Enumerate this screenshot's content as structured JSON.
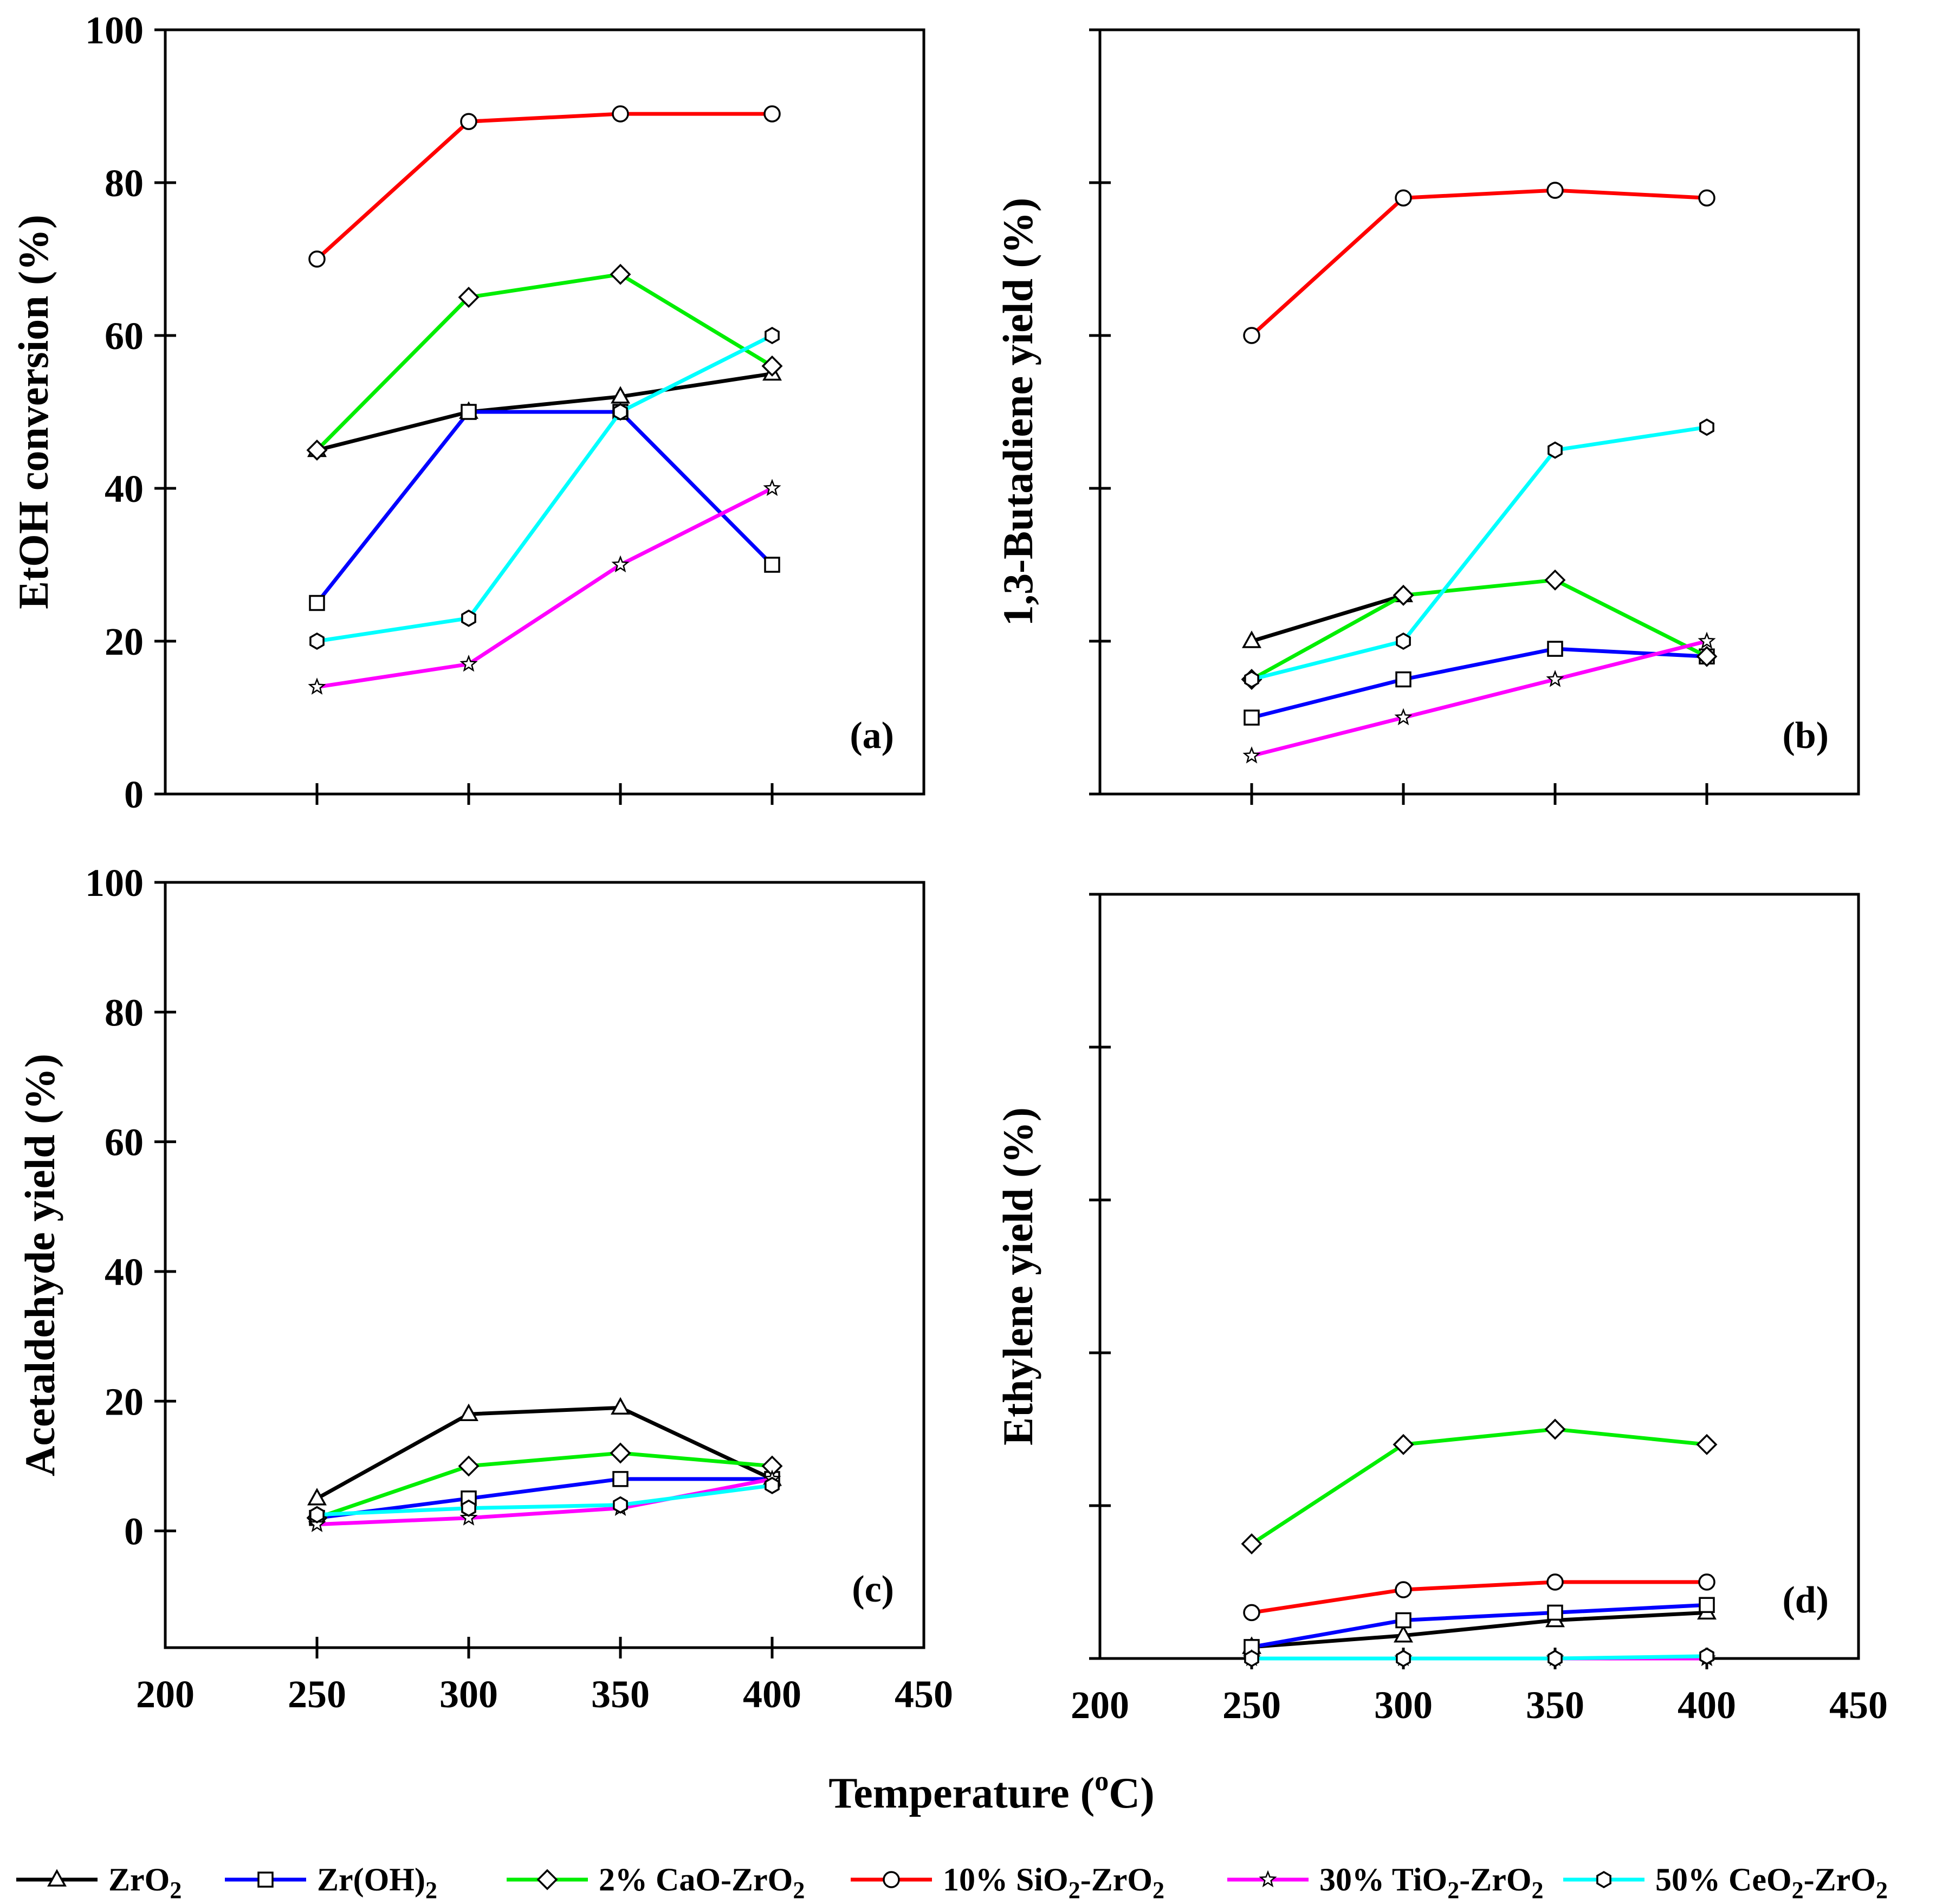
{
  "figure": {
    "xlabel": "Temperature",
    "xlabel_unit_base": "C",
    "xlabel_unit_sup": "o",
    "xlabel_close": ")"
  },
  "series_style": [
    {
      "name": "ZrO2",
      "color": "#000000",
      "marker": "triangle"
    },
    {
      "name": "Zr(OH)2",
      "color": "#0000ff",
      "marker": "square"
    },
    {
      "name": "2% CaO-ZrO2",
      "color": "#00ee00",
      "marker": "diamond"
    },
    {
      "name": "10% SiO2-ZrO2",
      "color": "#ff0000",
      "marker": "circle"
    },
    {
      "name": "30% TiO2-ZrO2",
      "color": "#ff00ff",
      "marker": "star"
    },
    {
      "name": "50% CeO2-ZrO2",
      "color": "#00ffff",
      "marker": "hexagon"
    }
  ],
  "legend": [
    {
      "prefix": "ZrO",
      "sub": "2",
      "suffix": ""
    },
    {
      "prefix": "Zr(OH)",
      "sub": "2",
      "suffix": ""
    },
    {
      "prefix": "2% CaO-ZrO",
      "sub": "2",
      "suffix": ""
    },
    {
      "prefix": "10% SiO",
      "sub": "2",
      "suffix": "-ZrO",
      "sub2": "2"
    },
    {
      "prefix": "30% TiO",
      "sub": "2",
      "suffix": "-ZrO",
      "sub2": "2"
    },
    {
      "prefix": "50% CeO",
      "sub": "2",
      "suffix": "-ZrO",
      "sub2": "2"
    }
  ],
  "chart_data": [
    {
      "type": "line",
      "panel": "(a)",
      "ylabel": "EtOH conversion (%)",
      "x": [
        250,
        300,
        350,
        400
      ],
      "xlim": [
        200,
        450
      ],
      "ylim": [
        0,
        100
      ],
      "xticks": [
        200,
        250,
        300,
        350,
        400,
        450
      ],
      "yticks": [
        0,
        20,
        40,
        60,
        80,
        100
      ],
      "show_xtick_labels": false,
      "show_ytick_labels": true,
      "series": [
        {
          "name": "ZrO2",
          "values": [
            45,
            50,
            52,
            55
          ]
        },
        {
          "name": "Zr(OH)2",
          "values": [
            25,
            50,
            50,
            30
          ]
        },
        {
          "name": "2% CaO-ZrO2",
          "values": [
            45,
            65,
            68,
            56
          ]
        },
        {
          "name": "10% SiO2-ZrO2",
          "values": [
            70,
            88,
            89,
            89
          ]
        },
        {
          "name": "30% TiO2-ZrO2",
          "values": [
            14,
            17,
            30,
            40
          ]
        },
        {
          "name": "50% CeO2-ZrO2",
          "values": [
            20,
            23,
            50,
            60
          ]
        }
      ]
    },
    {
      "type": "line",
      "panel": "(b)",
      "ylabel": "1,3-Butadiene yield (%)",
      "x": [
        250,
        300,
        350,
        400
      ],
      "xlim": [
        200,
        450
      ],
      "ylim": [
        0,
        100
      ],
      "xticks": [
        200,
        250,
        300,
        350,
        400,
        450
      ],
      "yticks": [
        0,
        20,
        40,
        60,
        80,
        100
      ],
      "show_xtick_labels": false,
      "show_ytick_labels": false,
      "series": [
        {
          "name": "ZrO2",
          "values": [
            20,
            26,
            null,
            null
          ]
        },
        {
          "name": "Zr(OH)2",
          "values": [
            10,
            15,
            19,
            18
          ]
        },
        {
          "name": "2% CaO-ZrO2",
          "values": [
            15,
            26,
            28,
            18
          ]
        },
        {
          "name": "10% SiO2-ZrO2",
          "values": [
            60,
            78,
            79,
            78
          ]
        },
        {
          "name": "30% TiO2-ZrO2",
          "values": [
            5,
            10,
            15,
            20
          ]
        },
        {
          "name": "50% CeO2-ZrO2",
          "values": [
            15,
            20,
            45,
            48
          ]
        }
      ]
    },
    {
      "type": "line",
      "panel": "(c)",
      "ylabel": "Acetaldehyde yield (%)",
      "x": [
        250,
        300,
        350,
        400
      ],
      "xlim": [
        200,
        450
      ],
      "ylim": [
        -18,
        100
      ],
      "xticks": [
        200,
        250,
        300,
        350,
        400,
        450
      ],
      "yticks": [
        0,
        20,
        40,
        60,
        80,
        100
      ],
      "show_xtick_labels": true,
      "show_ytick_labels": true,
      "series": [
        {
          "name": "ZrO2",
          "values": [
            5,
            18,
            19,
            8
          ]
        },
        {
          "name": "Zr(OH)2",
          "values": [
            2,
            5,
            8,
            8
          ]
        },
        {
          "name": "2% CaO-ZrO2",
          "values": [
            2,
            10,
            12,
            10
          ]
        },
        {
          "name": "10% SiO2-ZrO2",
          "values": [
            null,
            null,
            null,
            null
          ]
        },
        {
          "name": "30% TiO2-ZrO2",
          "values": [
            1,
            2,
            3.5,
            8
          ]
        },
        {
          "name": "50% CeO2-ZrO2",
          "values": [
            2.5,
            3.5,
            4,
            7
          ]
        }
      ]
    },
    {
      "type": "line",
      "panel": "(d)",
      "ylabel": "Ethylene yield (%)",
      "x": [
        250,
        300,
        350,
        400
      ],
      "xlim": [
        200,
        450
      ],
      "ylim": [
        0,
        100
      ],
      "xticks": [
        200,
        250,
        300,
        350,
        400,
        450
      ],
      "yticks": [
        0,
        20,
        40,
        60,
        80,
        100
      ],
      "show_xtick_labels": true,
      "show_ytick_labels": false,
      "series": [
        {
          "name": "ZrO2",
          "values": [
            1.5,
            3,
            5,
            6
          ]
        },
        {
          "name": "Zr(OH)2",
          "values": [
            1.5,
            5,
            6,
            7
          ]
        },
        {
          "name": "2% CaO-ZrO2",
          "values": [
            15,
            28,
            30,
            28
          ]
        },
        {
          "name": "10% SiO2-ZrO2",
          "values": [
            6,
            9,
            10,
            10
          ]
        },
        {
          "name": "30% TiO2-ZrO2",
          "values": [
            0,
            0,
            0,
            0
          ]
        },
        {
          "name": "50% CeO2-ZrO2",
          "values": [
            0,
            0,
            0,
            0.3
          ]
        }
      ]
    }
  ]
}
